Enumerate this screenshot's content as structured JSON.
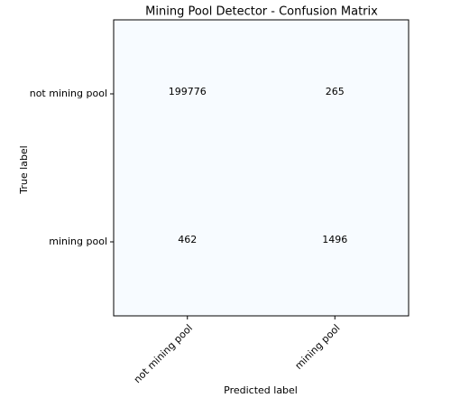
{
  "chart_data": {
    "type": "heatmap",
    "title": "Mining Pool Detector - Confusion Matrix",
    "xlabel": "Predicted label",
    "ylabel": "True label",
    "x_categories": [
      "not mining pool",
      "mining pool"
    ],
    "y_categories": [
      "not mining pool",
      "mining pool"
    ],
    "values": [
      [
        199776,
        265
      ],
      [
        462,
        1496
      ]
    ],
    "color": "#f7fbff"
  }
}
